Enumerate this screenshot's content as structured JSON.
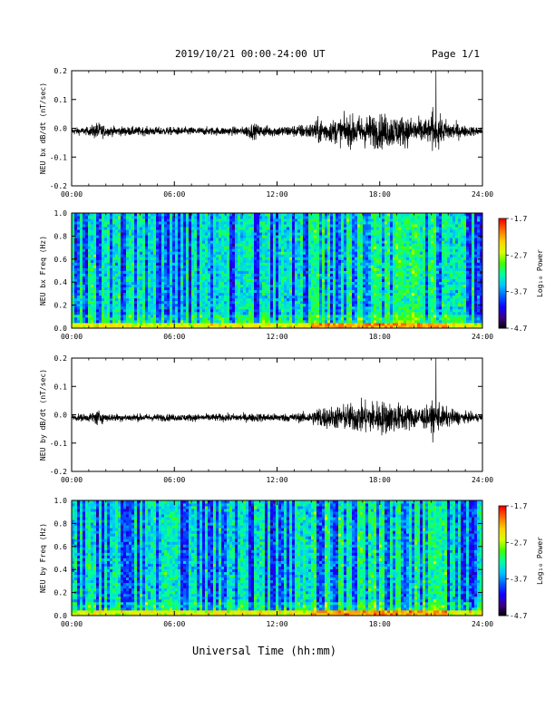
{
  "header": {
    "title": "2019/10/21  00:00-24:00 UT",
    "page": "Page 1/1"
  },
  "footer": {
    "xlabel": "Universal Time (hh:mm)"
  },
  "colorscale": [
    "#000000",
    "#3b0082",
    "#1400ff",
    "#0060ff",
    "#00c8ff",
    "#00ffa0",
    "#40ff00",
    "#d8ff00",
    "#ffd000",
    "#ff7000",
    "#ff0000"
  ],
  "chart_data": [
    {
      "type": "line",
      "ylabel": "NEU bx dB/dt (nT/sec)",
      "xlim": [
        "00:00",
        "24:00"
      ],
      "xticks": [
        "00:00",
        "06:00",
        "12:00",
        "18:00",
        "24:00"
      ],
      "ylim": [
        -0.2,
        0.2
      ],
      "yticks": [
        "-0.2",
        "-0.1",
        "0.0",
        "0.1",
        "0.2"
      ],
      "envelope": {
        "t_hours": [
          0,
          1,
          1.5,
          2,
          4,
          6,
          8,
          10,
          10.5,
          11,
          12,
          13,
          14,
          14.5,
          15,
          16,
          17,
          18,
          19,
          20,
          21,
          21.3,
          21.5,
          22,
          23,
          24
        ],
        "amplitude": [
          0.012,
          0.015,
          0.035,
          0.018,
          0.016,
          0.015,
          0.015,
          0.016,
          0.03,
          0.022,
          0.02,
          0.022,
          0.03,
          0.05,
          0.04,
          0.055,
          0.06,
          0.065,
          0.06,
          0.05,
          0.045,
          0.2,
          0.05,
          0.04,
          0.02,
          0.015
        ]
      }
    },
    {
      "type": "heatmap",
      "ylabel": "NEU bx Freq (Hz)",
      "xlim": [
        "00:00",
        "24:00"
      ],
      "xticks": [
        "00:00",
        "06:00",
        "12:00",
        "18:00",
        "24:00"
      ],
      "ylim": [
        0.0,
        1.0
      ],
      "yticks": [
        "0.0",
        "0.2",
        "0.4",
        "0.6",
        "0.8",
        "1.0"
      ],
      "colorbar": {
        "label": "Log₁₀ Power",
        "ticks": [
          "-1.7",
          "-2.7",
          "-3.7",
          "-4.7"
        ],
        "range": [
          -4.7,
          -1.7
        ]
      }
    },
    {
      "type": "line",
      "ylabel": "NEU by dB/dt (nT/sec)",
      "xlim": [
        "00:00",
        "24:00"
      ],
      "xticks": [
        "00:00",
        "06:00",
        "12:00",
        "18:00",
        "24:00"
      ],
      "ylim": [
        -0.2,
        0.2
      ],
      "yticks": [
        "-0.2",
        "-0.1",
        "0.0",
        "0.1",
        "0.2"
      ],
      "envelope": {
        "t_hours": [
          0,
          1,
          1.5,
          2,
          4,
          6,
          8,
          10,
          11,
          12,
          13,
          14,
          14.5,
          15,
          16,
          17,
          18,
          19,
          20,
          21,
          21.3,
          21.5,
          22,
          23,
          24
        ],
        "amplitude": [
          0.012,
          0.015,
          0.03,
          0.015,
          0.014,
          0.013,
          0.014,
          0.015,
          0.016,
          0.015,
          0.016,
          0.022,
          0.045,
          0.04,
          0.05,
          0.06,
          0.065,
          0.055,
          0.045,
          0.04,
          0.2,
          0.045,
          0.035,
          0.02,
          0.014
        ]
      }
    },
    {
      "type": "heatmap",
      "ylabel": "NEU by Freq (Hz)",
      "xlim": [
        "00:00",
        "24:00"
      ],
      "xticks": [
        "00:00",
        "06:00",
        "12:00",
        "18:00",
        "24:00"
      ],
      "ylim": [
        0.0,
        1.0
      ],
      "yticks": [
        "0.0",
        "0.2",
        "0.4",
        "0.6",
        "0.8",
        "1.0"
      ],
      "colorbar": {
        "label": "Log₁₀ Power",
        "ticks": [
          "-1.7",
          "-2.7",
          "-3.7",
          "-4.7"
        ],
        "range": [
          -4.7,
          -1.7
        ]
      }
    }
  ]
}
